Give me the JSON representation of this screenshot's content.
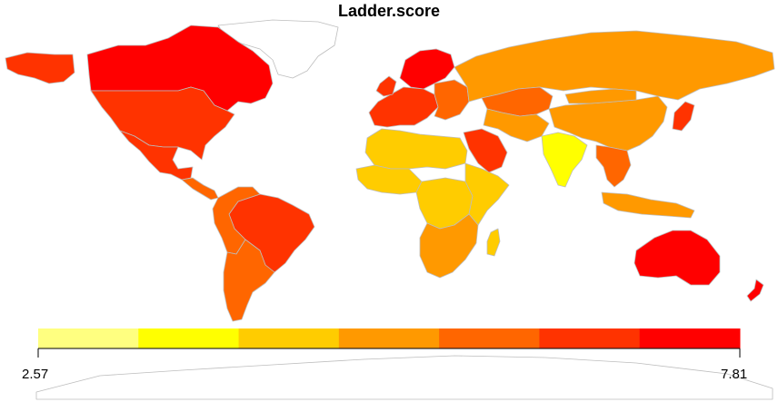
{
  "title": "Ladder.score",
  "legend": {
    "min_label": "2.57",
    "max_label": "7.81",
    "bins": [
      "#FFFF80",
      "#FFFF00",
      "#FFCC00",
      "#FF9900",
      "#FF6600",
      "#FF3300",
      "#FF0000"
    ]
  },
  "colors": {
    "na": "#FFFFFF",
    "border": "#BDBDBD"
  },
  "regions": [
    {
      "name": "greenland",
      "color": "na"
    },
    {
      "name": "canada",
      "color": "#FF0000"
    },
    {
      "name": "usa",
      "color": "#FF3300"
    },
    {
      "name": "mexico",
      "color": "#FF3300"
    },
    {
      "name": "central-america",
      "color": "#FF6600"
    },
    {
      "name": "brazil",
      "color": "#FF3300"
    },
    {
      "name": "andes",
      "color": "#FF6600"
    },
    {
      "name": "southern-cone",
      "color": "#FF6600"
    },
    {
      "name": "nordics",
      "color": "#FF0000"
    },
    {
      "name": "western-europe",
      "color": "#FF3300"
    },
    {
      "name": "eastern-europe",
      "color": "#FF6600"
    },
    {
      "name": "russia",
      "color": "#FF9900"
    },
    {
      "name": "kazakhstan",
      "color": "#FF6600"
    },
    {
      "name": "north-africa",
      "color": "#FFCC00"
    },
    {
      "name": "west-africa",
      "color": "#FFCC00"
    },
    {
      "name": "central-africa",
      "color": "#FFCC00"
    },
    {
      "name": "east-africa",
      "color": "#FFCC00"
    },
    {
      "name": "southern-africa",
      "color": "#FF9900"
    },
    {
      "name": "madagascar",
      "color": "#FFCC00"
    },
    {
      "name": "arabian-peninsula",
      "color": "#FF3300"
    },
    {
      "name": "iran",
      "color": "#FF9900"
    },
    {
      "name": "india",
      "color": "#FFFF00"
    },
    {
      "name": "china",
      "color": "#FF9900"
    },
    {
      "name": "mongolia",
      "color": "#FF9900"
    },
    {
      "name": "japan",
      "color": "#FF3300"
    },
    {
      "name": "southeast-asia",
      "color": "#FF6600"
    },
    {
      "name": "indonesia",
      "color": "#FF9900"
    },
    {
      "name": "australia",
      "color": "#FF0000"
    },
    {
      "name": "new-zealand",
      "color": "#FF0000"
    },
    {
      "name": "antarctica",
      "color": "na"
    }
  ]
}
